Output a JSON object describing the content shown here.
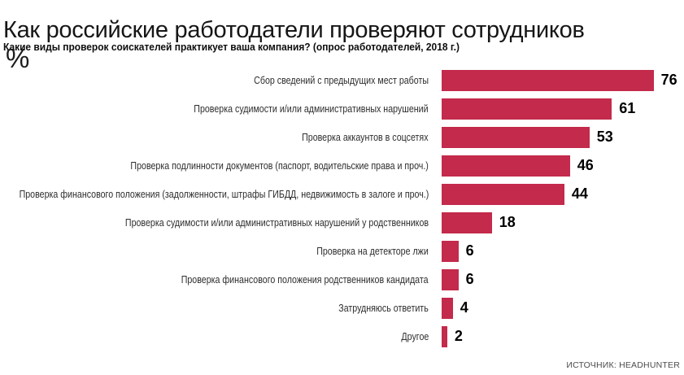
{
  "header": {
    "title": "Как российские работодатели проверяют сотрудников",
    "subtitle": "Какие виды проверок соискателей практикует ваша компания? (опрос работодателей, 2018 г.)",
    "unit_label": "%"
  },
  "chart_data": {
    "type": "bar",
    "orientation": "horizontal",
    "title": "Как российские работодатели проверяют сотрудников",
    "subtitle": "Какие виды проверок соискателей практикует ваша компания? (опрос работодателей, 2018 г.)",
    "categories": [
      "Сбор сведений с предыдущих мест работы",
      "Проверка судимости и/или административных нарушений",
      "Проверка аккаунтов в соцсетях",
      "Проверка подлинности документов (паспорт, водительские права и проч.)",
      "Проверка финансового положения (задолженности, штрафы ГИБДД, недвижимость в залоге и проч.)",
      "Проверка судимости и/или административных нарушений у родственников",
      "Проверка на детекторе лжи",
      "Проверка финансового положения родственников кандидата",
      "Затрудняюсь ответить",
      "Другое"
    ],
    "values": [
      76,
      61,
      53,
      46,
      44,
      18,
      6,
      6,
      4,
      2
    ],
    "xlabel": "",
    "ylabel": "%",
    "xlim": [
      0,
      80
    ],
    "grid": false,
    "legend": "none",
    "value_labels": "end-of-bar",
    "bar_color": "#C32A4B",
    "value_label_color": "#000000"
  },
  "footer": {
    "source": "ИСТОЧНИК: HEADHUNTER"
  }
}
